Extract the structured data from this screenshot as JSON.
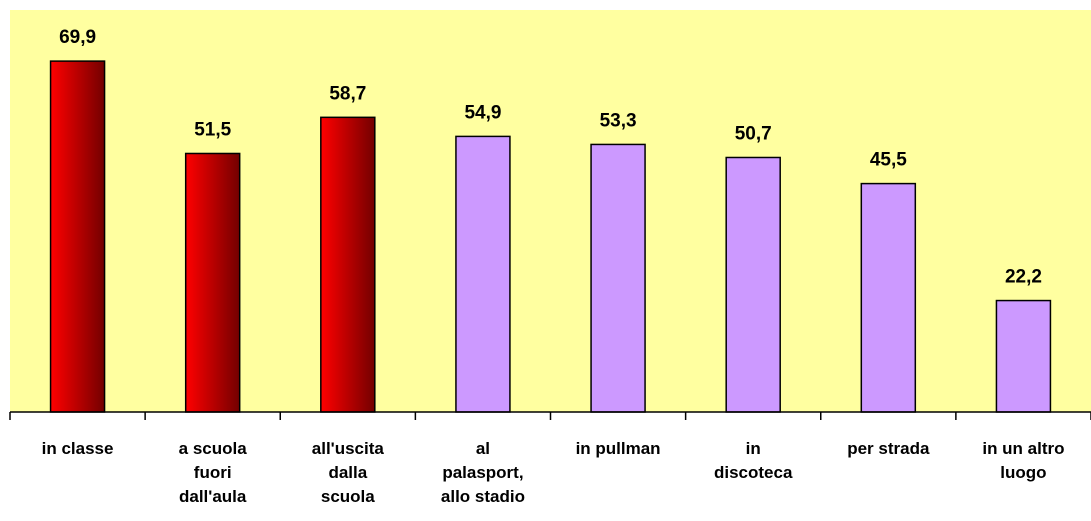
{
  "chart_data": {
    "type": "bar",
    "categories": [
      "in classe",
      "a scuola\nfuori\ndall'aula",
      "all'uscita\ndalla\nscuola",
      "al\npalasport,\nallo stadio",
      "in pullman",
      "in\ndiscoteca",
      "per strada",
      "in un altro\nluogo"
    ],
    "values": [
      69.9,
      51.5,
      58.7,
      54.9,
      53.3,
      50.7,
      45.5,
      22.2
    ],
    "value_labels": [
      "69,9",
      "51,5",
      "58,7",
      "54,9",
      "53,3",
      "50,7",
      "45,5",
      "22,2"
    ],
    "colors": [
      "#ff0000",
      "#ff0000",
      "#ff0000",
      "#cc99ff",
      "#cc99ff",
      "#cc99ff",
      "#cc99ff",
      "#cc99ff"
    ],
    "gradient": [
      true,
      true,
      true,
      false,
      false,
      false,
      false,
      false
    ],
    "plot_background": "#ffffa0"
  }
}
